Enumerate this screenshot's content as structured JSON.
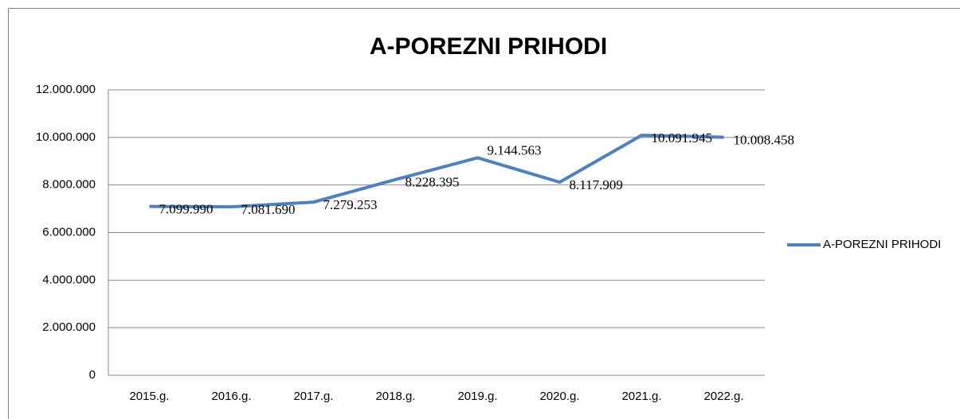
{
  "chart_data": {
    "type": "line",
    "title": "A-POREZNI PRIHODI",
    "categories": [
      "2015.g.",
      "2016.g.",
      "2017.g.",
      "2018.g.",
      "2019.g.",
      "2020.g.",
      "2021.g.",
      "2022.g."
    ],
    "series": [
      {
        "name": "A-POREZNI PRIHODI",
        "color": "#4f81bd",
        "values": [
          7099990,
          7081690,
          7279253,
          8228395,
          9144563,
          8117909,
          10091945,
          10008458
        ],
        "value_labels": [
          "7.099.990",
          "7.081.690",
          "7.279.253",
          "8.228.395",
          "9.144.563",
          "8.117.909",
          "10.091.945",
          "10.008.458"
        ]
      }
    ],
    "ylim": [
      0,
      12000000
    ],
    "yticks": [
      0,
      {
        "value": 2000000,
        "label": "2.000.000"
      },
      {
        "value": 4000000,
        "label": "4.000.000"
      },
      {
        "value": 6000000,
        "label": "6.000.000"
      },
      {
        "value": 8000000,
        "label": "8.000.000"
      },
      {
        "value": 10000000,
        "label": "10.000.000"
      },
      {
        "value": 12000000,
        "label": "12.000.000"
      }
    ],
    "grid": true,
    "legend": "right"
  }
}
